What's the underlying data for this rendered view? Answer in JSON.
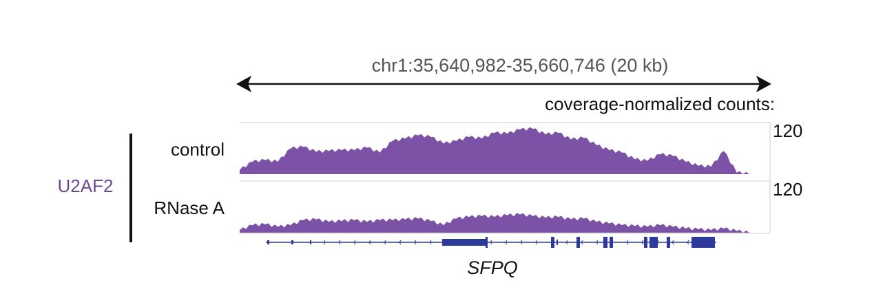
{
  "region_label": "chr1:35,640,982-35,660,746 (20 kb)",
  "normalization_label": "coverage-normalized counts:",
  "protein_label": "U2AF2",
  "gene_label": "SFPQ",
  "colors": {
    "track": "#7B52A6",
    "gene": "#2D3A9B",
    "protein_label": "#6B4796",
    "region_label": "#555555"
  },
  "chart_data": [
    {
      "type": "area",
      "title": "control",
      "scale_max_label": "120",
      "ylim": [
        0,
        120
      ],
      "x_kb": [
        0,
        0.5,
        1,
        1.5,
        2,
        2.5,
        3,
        3.5,
        4,
        4.5,
        5,
        5.5,
        6,
        6.5,
        7,
        7.5,
        8,
        8.5,
        9,
        9.5,
        10,
        10.5,
        11,
        11.5,
        12,
        12.5,
        13,
        13.5,
        14,
        14.5,
        15,
        15.5,
        16,
        16.5,
        17,
        17.5,
        18,
        18.5,
        19,
        19.5,
        20
      ],
      "values": [
        10,
        30,
        34,
        30,
        62,
        66,
        54,
        56,
        58,
        58,
        64,
        52,
        80,
        86,
        94,
        90,
        74,
        80,
        90,
        86,
        100,
        98,
        108,
        110,
        96,
        100,
        84,
        88,
        70,
        58,
        52,
        36,
        32,
        48,
        44,
        30,
        20,
        18,
        56,
        4,
        0
      ]
    },
    {
      "type": "area",
      "title": "RNase A",
      "scale_max_label": "120",
      "ylim": [
        0,
        120
      ],
      "x_kb": [
        0,
        0.5,
        1,
        1.5,
        2,
        2.5,
        3,
        3.5,
        4,
        4.5,
        5,
        5.5,
        6,
        6.5,
        7,
        7.5,
        8,
        8.5,
        9,
        9.5,
        10,
        10.5,
        11,
        11.5,
        12,
        12.5,
        13,
        13.5,
        14,
        14.5,
        15,
        15.5,
        16,
        16.5,
        17,
        17.5,
        18,
        18.5,
        19,
        19.5,
        20
      ],
      "values": [
        6,
        18,
        20,
        14,
        18,
        30,
        32,
        26,
        28,
        30,
        26,
        30,
        30,
        32,
        34,
        28,
        18,
        34,
        38,
        40,
        38,
        42,
        44,
        40,
        36,
        38,
        32,
        34,
        26,
        22,
        18,
        16,
        14,
        18,
        14,
        10,
        8,
        6,
        10,
        4,
        0
      ]
    }
  ]
}
